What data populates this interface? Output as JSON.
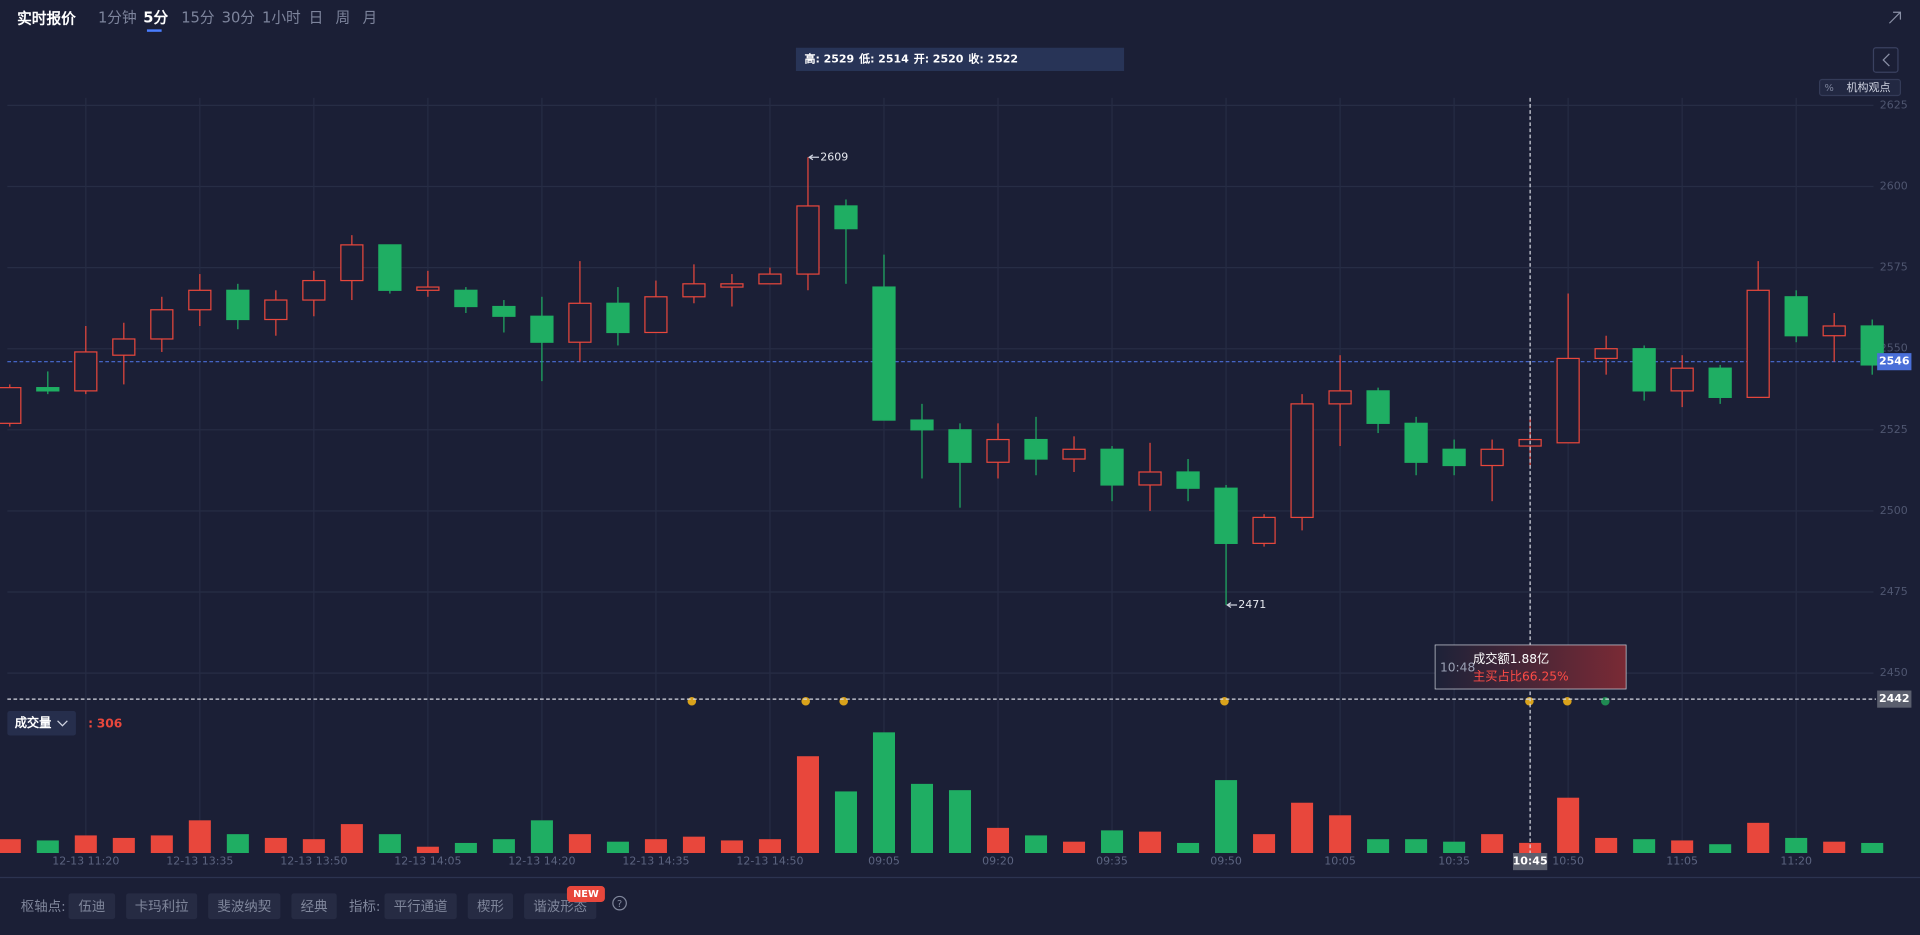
{
  "header": {
    "title": "实时报价",
    "tabs": [
      "1分钟",
      "5分",
      "15分",
      "30分",
      "1小时",
      "日",
      "周",
      "月"
    ],
    "active_tab": 1,
    "side_button_icon": "%",
    "side_button": "机构观点"
  },
  "chart_data": {
    "type": "candlestick",
    "categories": [
      null,
      null,
      "12-13 11:20",
      null,
      null,
      "12-13 13:35",
      null,
      null,
      "12-13 13:50",
      null,
      null,
      "12-13 14:05",
      null,
      null,
      "12-13 14:20",
      null,
      null,
      "12-13 14:35",
      null,
      null,
      "12-13 14:50",
      null,
      null,
      "09:05",
      null,
      null,
      "09:20",
      null,
      null,
      "09:35",
      null,
      null,
      "09:50",
      null,
      null,
      "10:05",
      null,
      null,
      "10:35",
      null,
      "10:45",
      "10:50",
      null,
      null,
      "11:05",
      null,
      null,
      "11:20",
      null,
      null
    ],
    "open": [
      2527,
      2538,
      2537,
      2548,
      2553,
      2562,
      2568,
      2559,
      2565,
      2571,
      2582,
      2568,
      2568,
      2563,
      2560,
      2552,
      2564,
      2555,
      2566,
      2569,
      2570,
      2573,
      2594,
      2569,
      2528,
      2525,
      2515,
      2522,
      2516,
      2519,
      2508,
      2512,
      2507,
      2490,
      2498,
      2533,
      2537,
      2527,
      2519,
      2514,
      2520,
      2521,
      2547,
      2550,
      2537,
      2544,
      2535,
      2566,
      2554,
      2557
    ],
    "high": [
      2539,
      2543,
      2557,
      2558,
      2566,
      2573,
      2570,
      2568,
      2574,
      2585,
      2582,
      2574,
      2569,
      2565,
      2566,
      2577,
      2569,
      2571,
      2576,
      2573,
      2575,
      2609,
      2596,
      2579,
      2533,
      2527,
      2527,
      2529,
      2523,
      2520,
      2521,
      2516,
      2508,
      2499,
      2536,
      2548,
      2538,
      2529,
      2522,
      2522,
      2529,
      2567,
      2554,
      2551,
      2548,
      2545,
      2577,
      2568,
      2561,
      2559
    ],
    "low": [
      2526,
      2536,
      2536,
      2539,
      2549,
      2557,
      2556,
      2554,
      2560,
      2565,
      2567,
      2566,
      2561,
      2555,
      2540,
      2546,
      2551,
      2555,
      2564,
      2563,
      2570,
      2568,
      2570,
      2528,
      2510,
      2501,
      2510,
      2511,
      2512,
      2503,
      2500,
      2503,
      2471,
      2489,
      2494,
      2520,
      2524,
      2511,
      2511,
      2503,
      2514,
      2521,
      2542,
      2534,
      2532,
      2533,
      2535,
      2552,
      2546,
      2542
    ],
    "close": [
      2538,
      2537,
      2549,
      2553,
      2562,
      2568,
      2559,
      2565,
      2571,
      2582,
      2568,
      2569,
      2563,
      2560,
      2552,
      2564,
      2555,
      2566,
      2570,
      2570,
      2573,
      2594,
      2587,
      2528,
      2525,
      2515,
      2522,
      2516,
      2519,
      2508,
      2512,
      2507,
      2490,
      2498,
      2533,
      2537,
      2527,
      2515,
      2514,
      2519,
      2522,
      2547,
      2550,
      2537,
      2544,
      2535,
      2568,
      2554,
      2557,
      2545
    ],
    "volume": [
      418,
      380,
      532,
      456,
      532,
      988,
      570,
      456,
      418,
      874,
      570,
      190,
      304,
      418,
      988,
      570,
      342,
      418,
      494,
      380,
      418,
      2926,
      1862,
      3648,
      2090,
      1900,
      760,
      532,
      342,
      684,
      646,
      304,
      2204,
      570,
      1520,
      1140,
      418,
      418,
      342,
      570,
      306,
      1672,
      456,
      418,
      380,
      266,
      912,
      456,
      342,
      304
    ],
    "up_color": "#e8473c",
    "down_color": "#1fae63",
    "ylim": [
      2438.7,
      2627.3
    ],
    "yticks": [
      2450,
      2475,
      2500,
      2525,
      2550,
      2575,
      2600,
      2625
    ],
    "grid": true,
    "volume_ylim": [
      0,
      3700
    ],
    "volume_label": "成交量",
    "volume_prefix": ":",
    "last_price": 2546,
    "last_price_color": "#4a6fd8",
    "crosshair": {
      "index": 40,
      "price": 2442
    },
    "ohlc_labels": {
      "high": "高:",
      "low": "低:",
      "open": "开:",
      "close": "收:"
    },
    "tooltip": {
      "time": "10:48",
      "turnover": "成交额1.88亿",
      "buy_ratio": "主买占比66.25%"
    }
  },
  "toolbar": {
    "pivot_label": "枢轴点:",
    "pivot_buttons": [
      "伍迪",
      "卡玛利拉",
      "斐波纳契",
      "经典"
    ],
    "indicator_label": "指标:",
    "indicator_buttons": [
      "平行通道",
      "楔形",
      "谐波形态"
    ],
    "new_badge": "NEW",
    "help": "?"
  }
}
